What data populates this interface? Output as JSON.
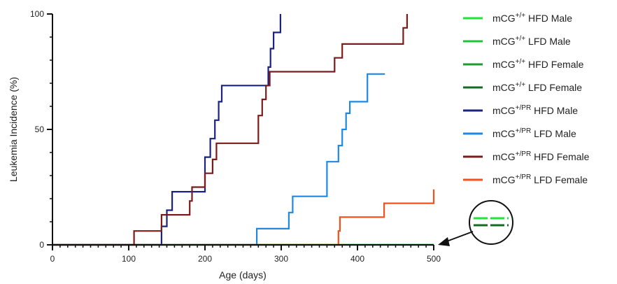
{
  "chart_data": {
    "type": "line",
    "step": true,
    "xlabel": "Age (days)",
    "ylabel": "Leukemia Incidence (%)",
    "xlim": [
      0,
      500
    ],
    "ylim": [
      0,
      100
    ],
    "x_ticks": [
      0,
      100,
      200,
      300,
      400,
      500
    ],
    "y_ticks": [
      0,
      50,
      100
    ],
    "x_minor_step": 10,
    "y_minor_step": 10,
    "grid": false,
    "legend_position": "right",
    "series": [
      {
        "base": "mCG",
        "sup": "+/+",
        "rest": " HFD Male",
        "color": "#22e33a",
        "x": [
          0,
          500
        ],
        "y": [
          0,
          0
        ]
      },
      {
        "base": "mCG",
        "sup": "+/+",
        "rest": " LFD Male",
        "color": "#1fc437",
        "x": [
          0,
          500
        ],
        "y": [
          0,
          0
        ]
      },
      {
        "base": "mCG",
        "sup": "+/+",
        "rest": " HFD Female",
        "color": "#1e9a30",
        "x": [
          0,
          500
        ],
        "y": [
          0,
          0
        ]
      },
      {
        "base": "mCG",
        "sup": "+/+",
        "rest": " LFD Female",
        "color": "#136b24",
        "x": [
          0,
          500
        ],
        "y": [
          0,
          0
        ]
      },
      {
        "base": "mCG",
        "sup": "+/PR",
        "rest": " HFD Male",
        "color": "#1a237e",
        "x": [
          0,
          107,
          143,
          150,
          157,
          163,
          183,
          200,
          207,
          213,
          218,
          222,
          265,
          283,
          286,
          290,
          299
        ],
        "y": [
          0,
          0,
          8,
          15,
          23,
          23,
          23,
          38,
          46,
          54,
          62,
          69,
          69,
          77,
          85,
          92,
          100
        ]
      },
      {
        "base": "mCG",
        "sup": "+/PR",
        "rest": " LFD Male",
        "color": "#1e88e5",
        "x": [
          0,
          268,
          310,
          315,
          360,
          375,
          380,
          385,
          390,
          413,
          436
        ],
        "y": [
          0,
          7,
          14,
          21,
          36,
          43,
          50,
          57,
          62,
          74,
          74
        ]
      },
      {
        "base": "mCG",
        "sup": "+/PR",
        "rest": " HFD Female",
        "color": "#7b1c1c",
        "x": [
          0,
          107,
          143,
          180,
          183,
          200,
          210,
          215,
          220,
          270,
          275,
          280,
          285,
          290,
          370,
          380,
          400,
          420,
          440,
          460,
          465
        ],
        "y": [
          0,
          6,
          13,
          19,
          25,
          31,
          37,
          44,
          44,
          56,
          63,
          69,
          75,
          75,
          81,
          87,
          87,
          87,
          87,
          94,
          100
        ]
      },
      {
        "base": "mCG",
        "sup": "+/PR",
        "rest": " LFD Female",
        "color": "#f4511e",
        "x": [
          0,
          375,
          377,
          435,
          500
        ],
        "y": [
          0,
          6,
          12,
          18,
          24
        ]
      }
    ]
  }
}
